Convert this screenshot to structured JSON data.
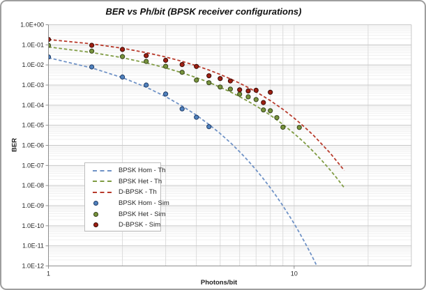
{
  "title": "BER vs Ph/bit (BPSK receiver configurations)",
  "x_axis": {
    "title": "Photons/bit",
    "scale": "log",
    "min": 1,
    "max": 30,
    "tick_labels": [
      "1",
      "10"
    ],
    "tick_values": [
      1,
      10
    ],
    "minor_gridlines": [
      2,
      3,
      4,
      5,
      6,
      7,
      8,
      9,
      10,
      20
    ]
  },
  "y_axis": {
    "title": "BER",
    "scale": "log",
    "min": 1e-12,
    "max": 1,
    "tick_labels": [
      "1.0E+00",
      "1.0E-01",
      "1.0E-02",
      "1.0E-03",
      "1.0E-04",
      "1.0E-05",
      "1.0E-06",
      "1.0E-07",
      "1.0E-08",
      "1.0E-09",
      "1.0E-10",
      "1.0E-11",
      "1.0E-12"
    ],
    "tick_exponents": [
      0,
      -1,
      -2,
      -3,
      -4,
      -5,
      -6,
      -7,
      -8,
      -9,
      -10,
      -11,
      -12
    ]
  },
  "colors": {
    "hom_line": "#6f92c6",
    "het_line": "#7f9b42",
    "dbpsk_line": "#b83a2b",
    "hom_dot": "#4f81bd",
    "hom_dot_edge": "#1f3b66",
    "het_dot": "#77933c",
    "het_dot_edge": "#35411a",
    "dbpsk_dot": "#9e1f12",
    "dbpsk_dot_edge": "#3a0b06",
    "grid_major": "#c9c9c9",
    "grid_minor": "#efefef",
    "grid_minor_v": "#dcdcdc",
    "axis_line": "#8e8e8e",
    "text": "#262626"
  },
  "legend": {
    "items": [
      {
        "label": "BPSK Hom - Th",
        "swatch": "dash",
        "color": "#6f92c6"
      },
      {
        "label": "BPSK Het - Th",
        "swatch": "dash",
        "color": "#7f9b42"
      },
      {
        "label": "D-BPSK - Th",
        "swatch": "dash",
        "color": "#b83a2b"
      },
      {
        "label": "BPSK Hom - Sim",
        "swatch": "dot",
        "color": "#4f81bd",
        "edge": "#1f3b66"
      },
      {
        "label": "BPSK Het - Sim",
        "swatch": "dot",
        "color": "#77933c",
        "edge": "#35411a"
      },
      {
        "label": "D-BPSK - Sim",
        "swatch": "dot",
        "color": "#9e1f12",
        "edge": "#3a0b06"
      }
    ]
  },
  "chart_data": {
    "type": "line",
    "title": "BER vs Ph/bit (BPSK receiver configurations)",
    "xlabel": "Photons/bit",
    "ylabel": "BER",
    "x_scale": "log",
    "y_scale": "log",
    "xlim": [
      1,
      30
    ],
    "ylim": [
      1e-12,
      1
    ],
    "grid": true,
    "legend_position": "inside-left",
    "series": [
      {
        "name": "BPSK Hom - Th",
        "kind": "theory",
        "color": "#6f92c6",
        "x": [
          1,
          1.5,
          2,
          2.5,
          3,
          3.5,
          4,
          4.5,
          5,
          5.5,
          6,
          6.5,
          7,
          7.5,
          8,
          8.5,
          9,
          9.5,
          10,
          10.5,
          11,
          11.5,
          12,
          12.5
        ],
        "y": [
          0.0228,
          0.00715,
          0.00234,
          0.000783,
          0.000265,
          9.09e-05,
          3.17e-05,
          1.1e-05,
          3.87e-06,
          1.36e-06,
          4.8e-07,
          1.7e-07,
          6e-08,
          2.16e-08,
          7.7e-09,
          2.75e-09,
          9.8e-10,
          3.5e-10,
          1.27e-10,
          4.6e-11,
          1.64e-11,
          5.9e-12,
          2.13e-12,
          7.7e-13
        ]
      },
      {
        "name": "BPSK Het - Th",
        "kind": "theory",
        "color": "#7f9b42",
        "x": [
          1,
          1.5,
          2,
          2.5,
          3,
          3.5,
          4,
          4.5,
          5,
          5.5,
          6,
          6.5,
          7,
          7.5,
          8,
          9,
          10,
          11,
          12,
          13,
          14,
          15,
          16
        ],
        "y": [
          0.0787,
          0.0417,
          0.0228,
          0.0127,
          0.00715,
          0.00408,
          0.00234,
          0.00136,
          0.000783,
          0.000456,
          0.000265,
          0.000154,
          9.09e-05,
          5.37e-05,
          3.17e-05,
          1.1e-05,
          3.87e-06,
          1.36e-06,
          4.8e-07,
          1.7e-07,
          6e-08,
          2.16e-08,
          7.7e-09
        ]
      },
      {
        "name": "D-BPSK - Th",
        "kind": "theory",
        "color": "#b83a2b",
        "x": [
          1,
          1.5,
          2,
          2.5,
          3,
          3.5,
          4,
          4.5,
          5,
          5.5,
          6,
          6.5,
          7,
          7.5,
          8,
          9,
          10,
          11,
          12,
          13,
          14,
          15,
          16
        ],
        "y": [
          0.184,
          0.112,
          0.0677,
          0.041,
          0.0249,
          0.0151,
          0.00916,
          0.00555,
          0.00337,
          0.00204,
          0.00124,
          0.00075,
          0.000456,
          0.000277,
          0.000168,
          6.2e-05,
          2.27e-05,
          8.3e-06,
          3.1e-06,
          1.1e-06,
          4.2e-07,
          1.5e-07,
          5.6e-08
        ]
      },
      {
        "name": "BPSK Hom - Sim",
        "kind": "sim",
        "color": "#4f81bd",
        "edge": "#1f3b66",
        "x": [
          1,
          1.5,
          2,
          2.5,
          3,
          3.5,
          4,
          4.5
        ],
        "y": [
          0.025,
          0.008,
          0.0025,
          0.001,
          0.00036,
          6.5e-05,
          2.5e-05,
          8.5e-06
        ]
      },
      {
        "name": "BPSK Het - Sim",
        "kind": "sim",
        "color": "#77933c",
        "edge": "#35411a",
        "x": [
          1,
          1.5,
          2,
          2.5,
          3,
          3.5,
          4,
          4.5,
          5,
          5.5,
          6,
          6.5,
          7,
          7.5,
          8,
          8.5,
          9,
          10.5
        ],
        "y": [
          0.094,
          0.049,
          0.026,
          0.015,
          0.0086,
          0.0043,
          0.00175,
          0.0013,
          0.0008,
          0.00063,
          0.00035,
          0.00026,
          0.00019,
          5.8e-05,
          5.3e-05,
          2.4e-05,
          8e-06,
          7.8e-06
        ]
      },
      {
        "name": "D-BPSK - Sim",
        "kind": "sim",
        "color": "#9e1f12",
        "edge": "#3a0b06",
        "x": [
          1,
          1.5,
          2,
          2.5,
          3,
          3.5,
          4,
          4.5,
          5,
          5.5,
          6,
          6.5,
          7,
          7.5,
          8
        ],
        "y": [
          0.185,
          0.095,
          0.059,
          0.029,
          0.017,
          0.0105,
          0.0084,
          0.0029,
          0.0021,
          0.0016,
          0.00058,
          0.00051,
          0.00055,
          0.000135,
          0.00044
        ]
      }
    ]
  }
}
